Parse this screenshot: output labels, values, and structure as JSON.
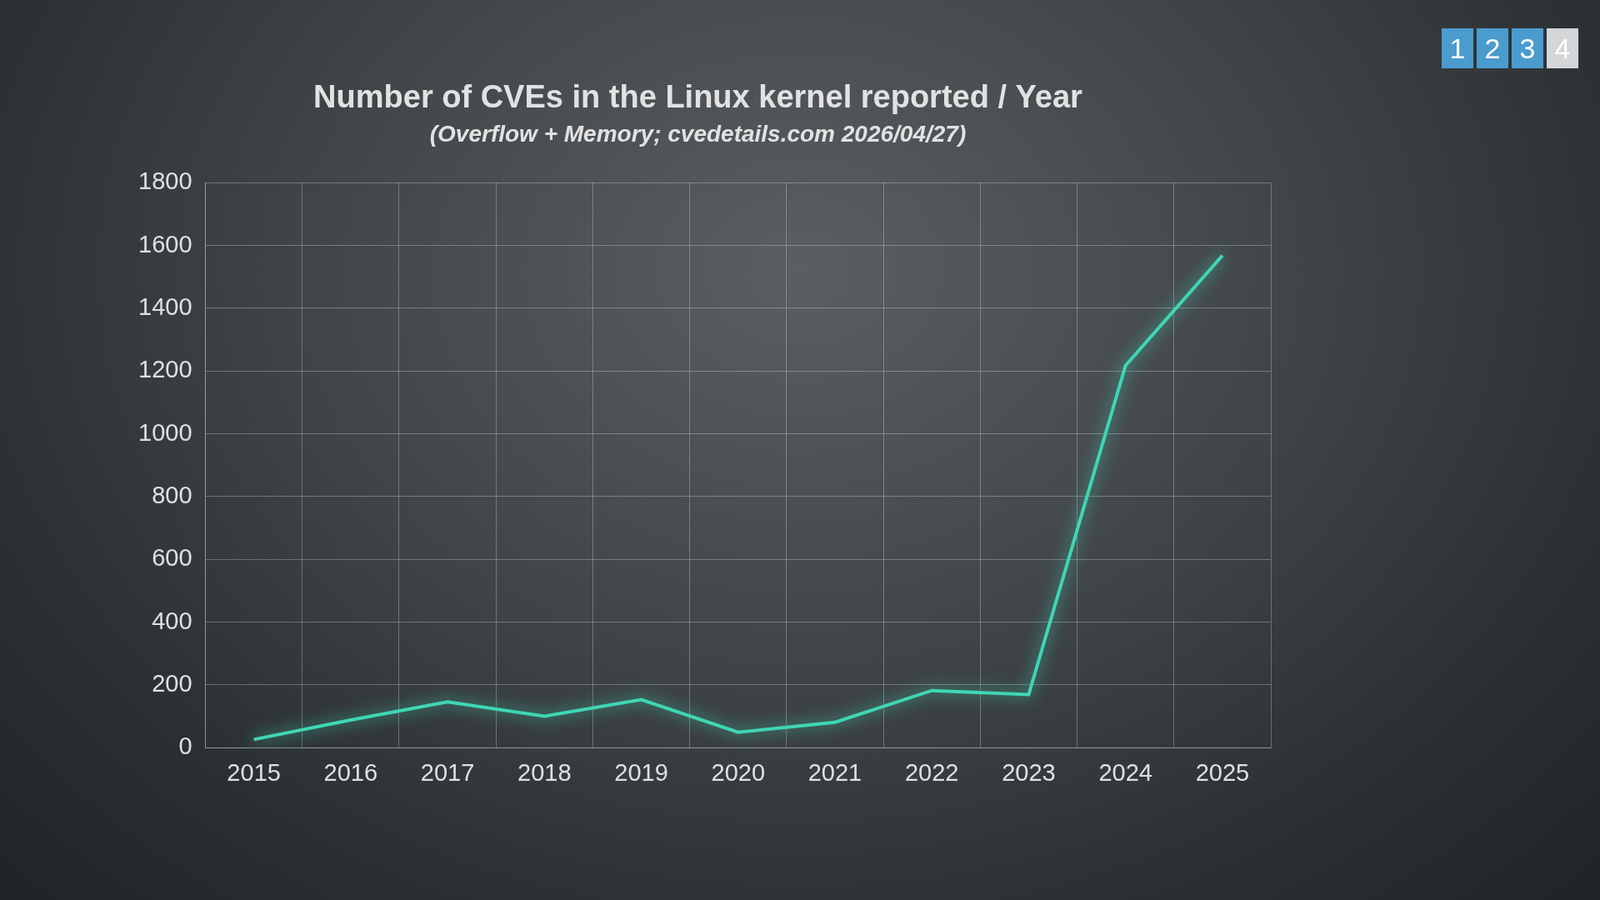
{
  "navigation": [
    "1",
    "2",
    "3",
    "4"
  ],
  "chart_data": {
    "type": "line",
    "title": "Number of CVEs in the Linux kernel reported / Year",
    "subtitle": "(Overflow + Memory; cvedetails.com 2026/04/27)",
    "categories": [
      "2015",
      "2016",
      "2017",
      "2018",
      "2019",
      "2020",
      "2021",
      "2022",
      "2023",
      "2024",
      "2025"
    ],
    "values": [
      26,
      88,
      146,
      100,
      153,
      49,
      81,
      182,
      169,
      1217,
      1568
    ],
    "color": "#3fd6b4",
    "ylim": [
      0,
      1800
    ],
    "yticks": [
      0,
      200,
      400,
      600,
      800,
      1000,
      1200,
      1400,
      1600,
      1800
    ],
    "grid": true
  }
}
